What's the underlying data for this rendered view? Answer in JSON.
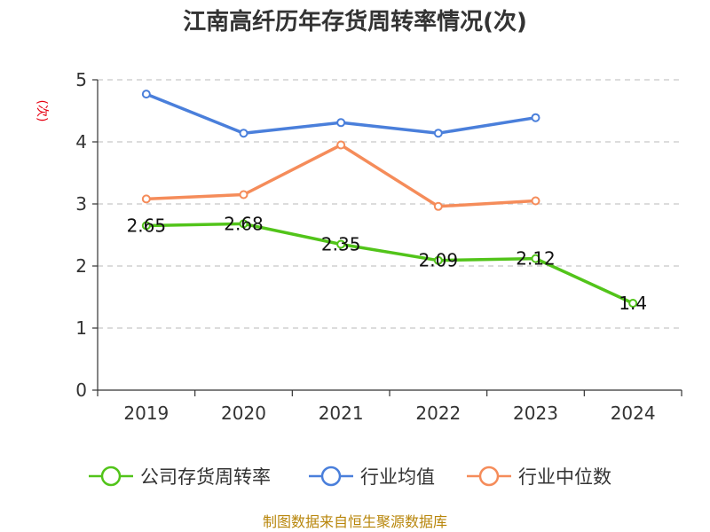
{
  "chart_data": {
    "type": "line",
    "title": "江南高纤历年存货周转率情况(次)",
    "ylabel": "(次)",
    "xlabel": "",
    "categories": [
      "2019",
      "2020",
      "2021",
      "2022",
      "2023",
      "2024"
    ],
    "ylim": [
      0,
      5
    ],
    "yticks": [
      "0",
      "1",
      "2",
      "3",
      "4",
      "5"
    ],
    "grid": true,
    "legend_position": "bottom",
    "series": [
      {
        "name": "公司存货周转率",
        "color": "#52c41a",
        "values": [
          2.65,
          2.68,
          2.35,
          2.09,
          2.12,
          1.4
        ],
        "labels": [
          "2.65",
          "2.68",
          "2.35",
          "2.09",
          "2.12",
          "1.4"
        ]
      },
      {
        "name": "行业均值",
        "color": "#4a7fdb",
        "values": [
          4.77,
          4.14,
          4.31,
          4.14,
          4.39,
          null
        ]
      },
      {
        "name": "行业中位数",
        "color": "#f58c5a",
        "values": [
          3.08,
          3.15,
          3.95,
          2.96,
          3.05,
          null
        ]
      }
    ]
  },
  "source": "制图数据来自恒生聚源数据库"
}
